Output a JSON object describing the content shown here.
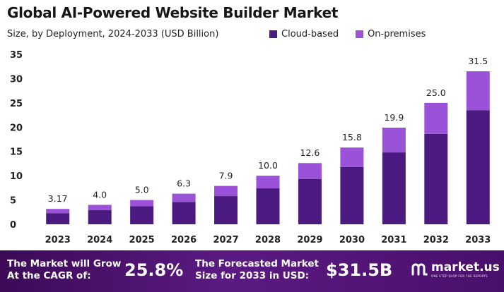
{
  "chart_data": {
    "type": "bar",
    "stacked": true,
    "title": "Global AI-Powered Website Builder Market",
    "subtitle": "Size, by Deployment, 2024-2033 (USD Billion)",
    "categories": [
      "2023",
      "2024",
      "2025",
      "2026",
      "2027",
      "2028",
      "2029",
      "2030",
      "2031",
      "2032",
      "2033"
    ],
    "series": [
      {
        "name": "Cloud-based",
        "color": "#4b1a80",
        "values": [
          2.3,
          2.9,
          3.7,
          4.6,
          5.8,
          7.4,
          9.3,
          11.8,
          14.8,
          18.6,
          23.5
        ]
      },
      {
        "name": "On-premises",
        "color": "#9a52d8",
        "values": [
          0.87,
          1.1,
          1.3,
          1.7,
          2.1,
          2.6,
          3.3,
          4.0,
          5.1,
          6.4,
          8.0
        ]
      }
    ],
    "totals": [
      "3.17",
      "4.0",
      "5.0",
      "6.3",
      "7.9",
      "10.0",
      "12.6",
      "15.8",
      "19.9",
      "25.0",
      "31.5"
    ],
    "yticks": [
      "0",
      "5",
      "10",
      "15",
      "20",
      "25",
      "30",
      "35"
    ],
    "ylim": [
      0,
      35
    ],
    "legend_position": "top-right"
  },
  "footer": {
    "cagr_line1": "The Market will Grow",
    "cagr_line2": "At the CAGR of:",
    "cagr_value": "25.8%",
    "forecast_line1": "The Forecasted Market",
    "forecast_line2": "Size for 2033 in USD:",
    "forecast_value": "$31.5B",
    "brand": "market.us",
    "brand_tagline": "ONE STOP SHOP FOR THE REPORTS"
  }
}
